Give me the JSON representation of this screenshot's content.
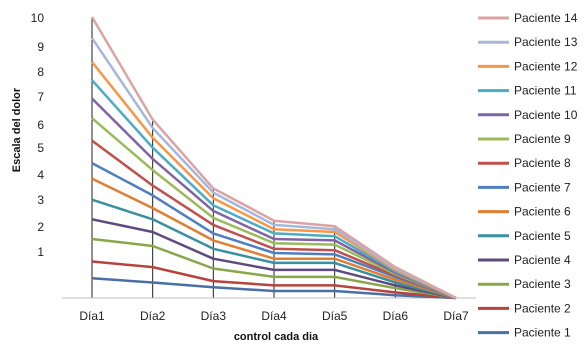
{
  "chart_data": {
    "type": "line",
    "title": "",
    "xlabel": "control cada dia",
    "ylabel": "Escala del dolor",
    "categories": [
      "Día1",
      "Día2",
      "Día3",
      "Día4",
      "Día5",
      "Día6",
      "Día7"
    ],
    "y_tick_labels": [
      "1",
      "2",
      "3",
      "4",
      "5",
      "6",
      "7",
      "8",
      "9",
      "10"
    ],
    "ylim": [
      0,
      10
    ],
    "legend_position": "right",
    "series": [
      {
        "name": "Paciente 1",
        "color": "#4a6fa5",
        "values": [
          0.7,
          0.55,
          0.38,
          0.25,
          0.25,
          0.1,
          0
        ]
      },
      {
        "name": "Paciente 2",
        "color": "#b7433f",
        "values": [
          1.3,
          1.1,
          0.6,
          0.45,
          0.45,
          0.2,
          0
        ]
      },
      {
        "name": "Paciente 3",
        "color": "#8aa64a",
        "values": [
          2.1,
          1.85,
          1.05,
          0.75,
          0.75,
          0.35,
          0
        ]
      },
      {
        "name": "Paciente 4",
        "color": "#5e4a80",
        "values": [
          2.8,
          2.35,
          1.4,
          1.0,
          1.0,
          0.45,
          0
        ]
      },
      {
        "name": "Paciente 5",
        "color": "#3a8fa0",
        "values": [
          3.5,
          2.8,
          1.75,
          1.25,
          1.25,
          0.55,
          0
        ]
      },
      {
        "name": "Paciente 6",
        "color": "#e07e33",
        "values": [
          4.25,
          3.2,
          2.05,
          1.4,
          1.4,
          0.65,
          0
        ]
      },
      {
        "name": "Paciente 7",
        "color": "#4f7fc0",
        "values": [
          4.8,
          3.65,
          2.3,
          1.6,
          1.55,
          0.75,
          0
        ]
      },
      {
        "name": "Paciente 8",
        "color": "#c0504d",
        "values": [
          5.6,
          4.0,
          2.6,
          1.75,
          1.7,
          0.8,
          0
        ]
      },
      {
        "name": "Paciente 9",
        "color": "#9bbb59",
        "values": [
          6.4,
          4.55,
          2.85,
          1.95,
          1.9,
          0.85,
          0
        ]
      },
      {
        "name": "Paciente 10",
        "color": "#8064a2",
        "values": [
          7.1,
          4.95,
          3.1,
          2.1,
          2.05,
          0.9,
          0
        ]
      },
      {
        "name": "Paciente 11",
        "color": "#4bacc6",
        "values": [
          7.75,
          5.35,
          3.3,
          2.3,
          2.2,
          0.95,
          0
        ]
      },
      {
        "name": "Paciente 12",
        "color": "#f79646",
        "values": [
          8.4,
          5.7,
          3.55,
          2.45,
          2.35,
          1.0,
          0
        ]
      },
      {
        "name": "Paciente 13",
        "color": "#a5b8dc",
        "values": [
          9.25,
          6.05,
          3.75,
          2.6,
          2.45,
          1.05,
          0
        ]
      },
      {
        "name": "Paciente 14",
        "color": "#d9a4a3",
        "values": [
          10.0,
          6.35,
          3.9,
          2.75,
          2.55,
          1.1,
          0
        ]
      }
    ]
  }
}
